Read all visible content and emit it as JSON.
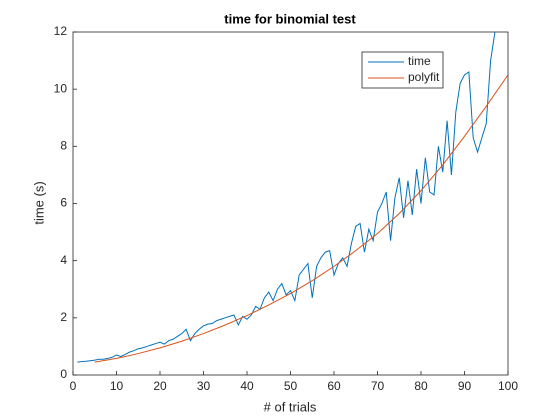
{
  "chart_data": {
    "type": "line",
    "title": "time for binomial test",
    "x_label": "# of trials",
    "y_label": "time (s)",
    "xlim": [
      0,
      100
    ],
    "xticks": [
      0,
      10,
      20,
      30,
      40,
      50,
      60,
      70,
      80,
      90,
      100
    ],
    "ylim": [
      0,
      12
    ],
    "yticks": [
      0,
      2,
      4,
      6,
      8,
      10,
      12
    ],
    "legend": "northeast",
    "series": [
      {
        "name": "time",
        "color": "#0072bd",
        "x": [
          1,
          2,
          3,
          4,
          5,
          6,
          7,
          8,
          9,
          10,
          11,
          12,
          13,
          14,
          15,
          16,
          17,
          18,
          19,
          20,
          21,
          22,
          23,
          24,
          25,
          26,
          27,
          28,
          29,
          30,
          31,
          32,
          33,
          34,
          35,
          36,
          37,
          38,
          39,
          40,
          41,
          42,
          43,
          44,
          45,
          46,
          47,
          48,
          49,
          50,
          51,
          52,
          53,
          54,
          55,
          56,
          57,
          58,
          59,
          60,
          61,
          62,
          63,
          64,
          65,
          66,
          67,
          68,
          69,
          70,
          71,
          72,
          73,
          74,
          75,
          76,
          77,
          78,
          79,
          80,
          81,
          82,
          83,
          84,
          85,
          86,
          87,
          88,
          89,
          90,
          91,
          92,
          93,
          94,
          95,
          96,
          97
        ],
        "values": [
          0.45,
          0.47,
          0.48,
          0.5,
          0.52,
          0.55,
          0.55,
          0.58,
          0.62,
          0.7,
          0.65,
          0.72,
          0.8,
          0.85,
          0.92,
          0.95,
          1.0,
          1.05,
          1.1,
          1.15,
          1.08,
          1.2,
          1.25,
          1.35,
          1.45,
          1.6,
          1.2,
          1.45,
          1.6,
          1.72,
          1.78,
          1.8,
          1.9,
          1.95,
          2.0,
          2.05,
          2.1,
          1.75,
          2.05,
          1.95,
          2.1,
          2.4,
          2.3,
          2.7,
          2.9,
          2.6,
          3.0,
          3.2,
          2.8,
          2.95,
          2.6,
          3.5,
          3.7,
          3.9,
          2.7,
          3.8,
          4.1,
          4.3,
          4.35,
          3.5,
          3.9,
          4.1,
          3.8,
          4.6,
          5.2,
          5.3,
          4.3,
          5.1,
          4.7,
          5.7,
          6.0,
          6.4,
          4.7,
          6.2,
          6.9,
          5.5,
          6.8,
          5.6,
          7.2,
          6.0,
          7.6,
          6.4,
          6.3,
          8.0,
          7.1,
          8.9,
          7.0,
          9.2,
          10.2,
          10.5,
          10.6,
          8.3,
          7.8,
          8.3,
          8.8,
          11.0,
          12.0
        ]
      },
      {
        "name": "polyfit",
        "color": "#d95319",
        "x": [
          5,
          10,
          15,
          20,
          25,
          30,
          35,
          40,
          45,
          50,
          55,
          60,
          65,
          70,
          75,
          80,
          85,
          90,
          95,
          100
        ],
        "values": [
          0.45,
          0.58,
          0.75,
          0.95,
          1.18,
          1.45,
          1.75,
          2.08,
          2.45,
          2.85,
          3.3,
          3.8,
          4.35,
          4.95,
          5.65,
          6.45,
          7.35,
          8.35,
          9.4,
          10.5
        ]
      }
    ]
  }
}
